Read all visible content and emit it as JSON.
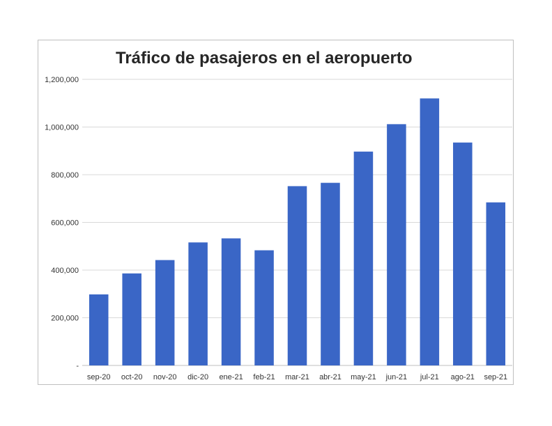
{
  "chart_data": {
    "type": "bar",
    "title": "Tráfico de pasajeros en el aeropuerto",
    "xlabel": "",
    "ylabel": "",
    "categories": [
      "sep-20",
      "oct-20",
      "nov-20",
      "dic-20",
      "ene-21",
      "feb-21",
      "mar-21",
      "abr-21",
      "may-21",
      "jun-21",
      "jul-21",
      "ago-21",
      "sep-21"
    ],
    "series": [
      {
        "values": [
          298000,
          386000,
          442000,
          516000,
          533000,
          483000,
          752000,
          766000,
          897000,
          1012000,
          1120000,
          935000,
          684000
        ]
      }
    ],
    "ylim": [
      0,
      1200000
    ],
    "y_ticks": [
      0,
      200000,
      400000,
      600000,
      800000,
      1000000,
      1200000
    ],
    "y_tick_labels": [
      "-",
      "200,000",
      "400,000",
      "600,000",
      "800,000",
      "1,000,000",
      "1,200,000"
    ],
    "grid": true,
    "legend": "none",
    "bar_color": "#3a66c6",
    "grid_color": "#d9d9d9"
  }
}
